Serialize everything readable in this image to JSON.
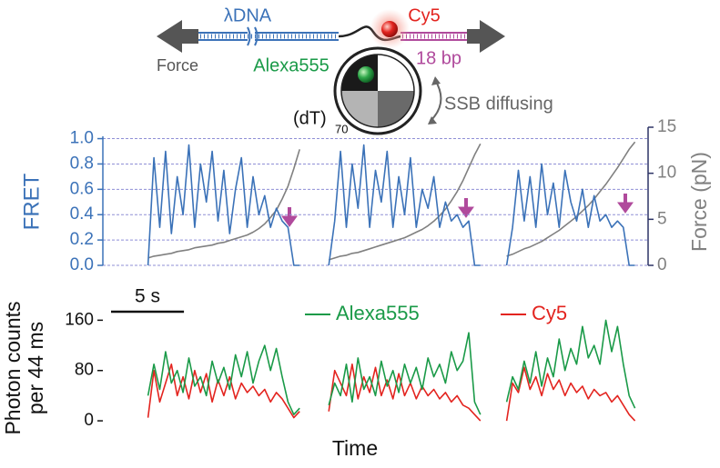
{
  "schematic": {
    "dna": "λDNA",
    "force": "Force",
    "donor": "Alexa555",
    "acceptor": "Cy5",
    "length": "18 bp",
    "motion": "SSB diffusing",
    "strand": "(dT)",
    "strand_sub": "70"
  },
  "chart_data": [
    {
      "type": "line",
      "ylabel": "FRET",
      "y2label": "Force (pN)",
      "xlim": [
        -3.1,
        34.3
      ],
      "ylim": [
        0,
        1.09
      ],
      "yticks": [
        {
          "value": 0,
          "label": "0.0"
        },
        {
          "value": 0.2,
          "label": "0.2"
        },
        {
          "value": 0.4,
          "label": "0.4"
        },
        {
          "value": 0.6,
          "label": "0.6"
        },
        {
          "value": 0.8,
          "label": "0.8"
        },
        {
          "value": 1,
          "label": "1.0"
        }
      ],
      "y2lim": [
        0,
        15
      ],
      "y2ticks": [
        0,
        5,
        10,
        15
      ],
      "grid": true,
      "x": [
        0,
        0.4,
        0.8,
        1.2,
        1.6,
        2,
        2.4,
        2.8,
        3.2,
        3.6,
        4,
        4.4,
        4.8,
        5.2,
        5.6,
        6,
        6.4,
        6.8,
        7.2,
        7.6,
        8,
        8.4,
        8.8,
        9.2,
        9.6,
        10,
        10.4,
        11.4,
        12.4,
        12.8,
        13.2,
        13.6,
        14,
        14.4,
        14.8,
        15.2,
        15.6,
        16,
        16.4,
        16.8,
        17.2,
        17.6,
        18,
        18.4,
        18.8,
        19.2,
        19.6,
        20,
        20.4,
        20.8,
        21.2,
        21.6,
        22,
        22.4,
        22.8,
        23.7,
        24.6,
        25,
        25.4,
        25.8,
        26.2,
        26.6,
        27,
        27.4,
        27.8,
        28.2,
        28.6,
        29,
        29.4,
        29.8,
        30.2,
        30.6,
        31,
        31.4,
        31.8,
        32.2,
        32.6,
        33,
        33.4
      ],
      "series": [
        {
          "color": "#3b72b8",
          "values": [
            0,
            0.85,
            0.3,
            0.9,
            0.25,
            0.7,
            0.4,
            0.95,
            0.3,
            0.8,
            0.5,
            0.9,
            0.35,
            0.75,
            0.25,
            0.6,
            0.85,
            0.3,
            0.7,
            0.4,
            0.55,
            0.3,
            0.45,
            0.35,
            0.3,
            0,
            0,
            null,
            0,
            0.35,
            0.9,
            0.3,
            0.8,
            0.45,
            0.95,
            0.3,
            0.75,
            0.5,
            0.9,
            0.3,
            0.7,
            0.4,
            0.85,
            0.3,
            0.6,
            0.45,
            0.7,
            0.3,
            0.5,
            0.35,
            0.4,
            0.3,
            0.35,
            0,
            0,
            null,
            0,
            0.3,
            0.75,
            0.35,
            0.7,
            0.3,
            0.8,
            0.4,
            0.65,
            0.3,
            0.75,
            0.5,
            0.35,
            0.6,
            0.3,
            0.55,
            0.35,
            0.4,
            0.3,
            0.35,
            0.3,
            0,
            0
          ]
        },
        {
          "color": "#808080",
          "axis": "y2",
          "values": [
            0.8,
            1,
            1.1,
            1.2,
            1.3,
            1.5,
            1.6,
            1.7,
            1.9,
            2,
            2.1,
            2.2,
            2.4,
            2.5,
            2.7,
            2.9,
            3.1,
            3.3,
            3.6,
            4,
            4.5,
            5.2,
            6,
            7.2,
            8.6,
            10.5,
            12.6,
            null,
            0.6,
            0.8,
            1,
            1.1,
            1.3,
            1.4,
            1.6,
            1.8,
            2,
            2.2,
            2.4,
            2.6,
            2.8,
            3,
            3.3,
            3.6,
            3.9,
            4.3,
            4.8,
            5.4,
            6.1,
            7,
            8,
            9.2,
            10.6,
            12,
            13.2,
            null,
            1,
            1.2,
            1.5,
            1.8,
            2,
            2.3,
            2.6,
            3,
            3.4,
            3.8,
            4.3,
            4.8,
            5.3,
            5.9,
            6.5,
            7.2,
            8,
            8.8,
            9.7,
            10.6,
            11.6,
            12.6,
            13.4
          ]
        }
      ]
    },
    {
      "type": "line",
      "xlabel": "Time",
      "ylabel": [
        "Photon counts",
        "per 44 ms"
      ],
      "scale_bar": {
        "value": 5,
        "label": "5 s"
      },
      "xlim": [
        -3.1,
        34.3
      ],
      "ylim": [
        -10,
        175
      ],
      "yticks": [
        0,
        80,
        160
      ],
      "legend": "top",
      "x": [
        0,
        0.4,
        0.8,
        1.2,
        1.6,
        2,
        2.4,
        2.8,
        3.2,
        3.6,
        4,
        4.4,
        4.8,
        5.2,
        5.6,
        6,
        6.4,
        6.8,
        7.2,
        7.6,
        8,
        8.4,
        8.8,
        9.2,
        9.6,
        10,
        10.4,
        11.4,
        12.4,
        12.8,
        13.2,
        13.6,
        14,
        14.4,
        14.8,
        15.2,
        15.6,
        16,
        16.4,
        16.8,
        17.2,
        17.6,
        18,
        18.4,
        18.8,
        19.2,
        19.6,
        20,
        20.4,
        20.8,
        21.2,
        21.6,
        22,
        22.4,
        22.8,
        23.7,
        24.6,
        25,
        25.4,
        25.8,
        26.2,
        26.6,
        27,
        27.4,
        27.8,
        28.2,
        28.6,
        29,
        29.4,
        29.8,
        30.2,
        30.6,
        31,
        31.4,
        31.8,
        32.2,
        32.6,
        33,
        33.4
      ],
      "series": [
        {
          "name": "Alexa555",
          "color": "#1a9a48",
          "values": [
            40,
            90,
            50,
            110,
            60,
            80,
            45,
            100,
            55,
            70,
            40,
            95,
            60,
            85,
            50,
            105,
            70,
            110,
            60,
            95,
            120,
            80,
            115,
            70,
            30,
            10,
            20,
            null,
            25,
            60,
            40,
            90,
            30,
            100,
            50,
            70,
            40,
            95,
            55,
            80,
            45,
            90,
            60,
            85,
            50,
            100,
            70,
            90,
            60,
            110,
            80,
            95,
            140,
            30,
            10,
            null,
            30,
            70,
            50,
            95,
            60,
            110,
            55,
            100,
            70,
            130,
            80,
            115,
            90,
            150,
            100,
            120,
            90,
            160,
            110,
            150,
            90,
            40,
            20
          ]
        },
        {
          "name": "Cy5",
          "color": "#e3241f",
          "values": [
            5,
            80,
            30,
            60,
            90,
            40,
            70,
            35,
            80,
            45,
            75,
            30,
            65,
            40,
            70,
            35,
            60,
            45,
            55,
            40,
            50,
            30,
            45,
            35,
            20,
            5,
            15,
            null,
            15,
            80,
            60,
            40,
            90,
            35,
            70,
            45,
            85,
            40,
            65,
            35,
            75,
            40,
            60,
            35,
            55,
            40,
            50,
            35,
            45,
            30,
            40,
            25,
            20,
            10,
            0,
            null,
            0,
            60,
            45,
            85,
            50,
            70,
            40,
            75,
            50,
            65,
            40,
            60,
            45,
            55,
            35,
            50,
            40,
            45,
            30,
            40,
            25,
            10,
            0
          ]
        }
      ]
    }
  ]
}
